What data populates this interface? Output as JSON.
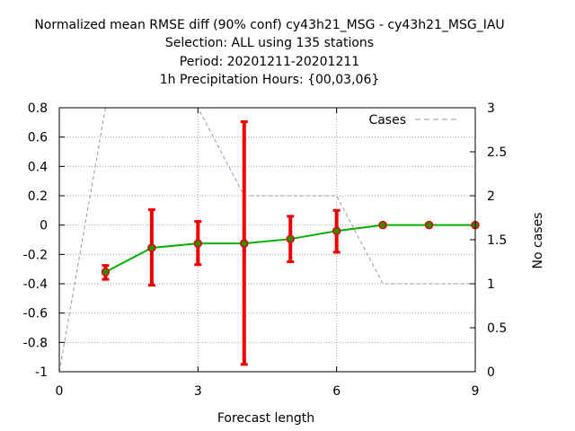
{
  "chart_data": {
    "type": "line",
    "title": [
      "Normalized mean RMSE diff (90% conf) cy43h21_MSG - cy43h21_MSG_IAU",
      "Selection: ALL using   135 stations",
      "Period: 20201211-20201211",
      "1h Precipitation   Hours: {00,03,06}"
    ],
    "xlabel": "Forecast length",
    "ylabel": "",
    "y2label": "No cases",
    "xlim": [
      0,
      9
    ],
    "ylim": [
      -1,
      0.8
    ],
    "y2lim": [
      0,
      3
    ],
    "xticks": [
      "0",
      "3",
      "6",
      "9"
    ],
    "xtick_values": [
      0,
      3,
      6,
      9
    ],
    "yticks": [
      "0.8",
      "0.6",
      "0.4",
      "0.2",
      "0",
      "-0.2",
      "-0.4",
      "-0.6",
      "-0.8",
      "-1"
    ],
    "ytick_values": [
      0.8,
      0.6,
      0.4,
      0.2,
      0,
      -0.2,
      -0.4,
      -0.6,
      -0.8,
      -1
    ],
    "y2ticks": [
      "3",
      "2.5",
      "2",
      "1.5",
      "1",
      "0.5",
      "0"
    ],
    "y2tick_values": [
      3,
      2.5,
      2,
      1.5,
      1,
      0.5,
      0
    ],
    "grid": true,
    "legend_position": "top-right",
    "series": [
      {
        "kind": "mean-with-errorbars",
        "x": [
          1,
          2,
          3,
          4,
          5,
          6,
          7,
          8,
          9
        ],
        "y": [
          -0.32,
          -0.155,
          -0.125,
          -0.125,
          -0.095,
          -0.04,
          0.0,
          0.0,
          0.0
        ],
        "err_low": [
          -0.37,
          -0.41,
          -0.27,
          -0.95,
          -0.25,
          -0.185,
          0.0,
          0.0,
          0.0
        ],
        "err_high": [
          -0.275,
          0.105,
          0.025,
          0.705,
          0.06,
          0.1,
          0.0,
          0.0,
          0.0
        ],
        "line_color": "#00b000",
        "marker_color": "#2e8b00",
        "error_color": "#ee0000"
      },
      {
        "name": "Cases",
        "axis": "y2",
        "x": [
          0,
          1,
          2,
          3,
          4,
          5,
          6,
          7,
          8,
          9
        ],
        "y": [
          0,
          3,
          3,
          3,
          2,
          2,
          2,
          1,
          1,
          1
        ],
        "color": "#999999",
        "dashed": true
      }
    ]
  }
}
